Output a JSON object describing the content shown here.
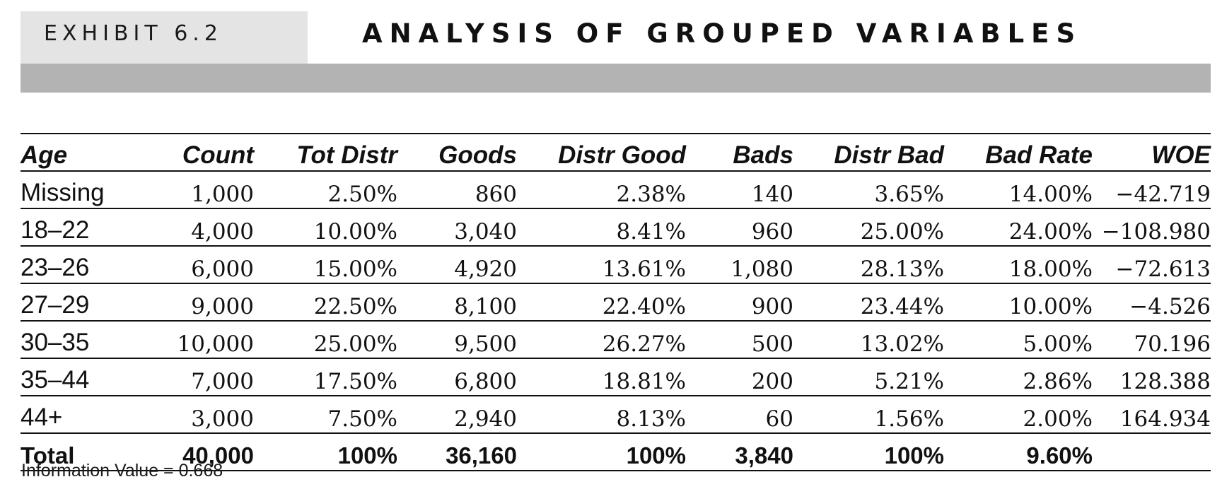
{
  "exhibit": {
    "label": "EXHIBIT 6.2",
    "title": "ANALYSIS OF GROUPED VARIABLES"
  },
  "table": {
    "columns": [
      "Age",
      "Count",
      "Tot Distr",
      "Goods",
      "Distr Good",
      "Bads",
      "Distr Bad",
      "Bad Rate",
      "WOE"
    ],
    "rows": [
      [
        "Missing",
        "1,000",
        "2.50%",
        "860",
        "2.38%",
        "140",
        "3.65%",
        "14.00%",
        "−42.719"
      ],
      [
        "18–22",
        "4,000",
        "10.00%",
        "3,040",
        "8.41%",
        "960",
        "25.00%",
        "24.00%",
        "−108.980"
      ],
      [
        "23–26",
        "6,000",
        "15.00%",
        "4,920",
        "13.61%",
        "1,080",
        "28.13%",
        "18.00%",
        "−72.613"
      ],
      [
        "27–29",
        "9,000",
        "22.50%",
        "8,100",
        "22.40%",
        "900",
        "23.44%",
        "10.00%",
        "−4.526"
      ],
      [
        "30–35",
        "10,000",
        "25.00%",
        "9,500",
        "26.27%",
        "500",
        "13.02%",
        "5.00%",
        "70.196"
      ],
      [
        "35–44",
        "7,000",
        "17.50%",
        "6,800",
        "18.81%",
        "200",
        "5.21%",
        "2.86%",
        "128.388"
      ],
      [
        "44+",
        "3,000",
        "7.50%",
        "2,940",
        "8.13%",
        "60",
        "1.56%",
        "2.00%",
        "164.934"
      ]
    ],
    "total": [
      "Total",
      "40,000",
      "100%",
      "36,160",
      "100%",
      "3,840",
      "100%",
      "9.60%",
      ""
    ]
  },
  "footnote": "Information Value = 0.668"
}
